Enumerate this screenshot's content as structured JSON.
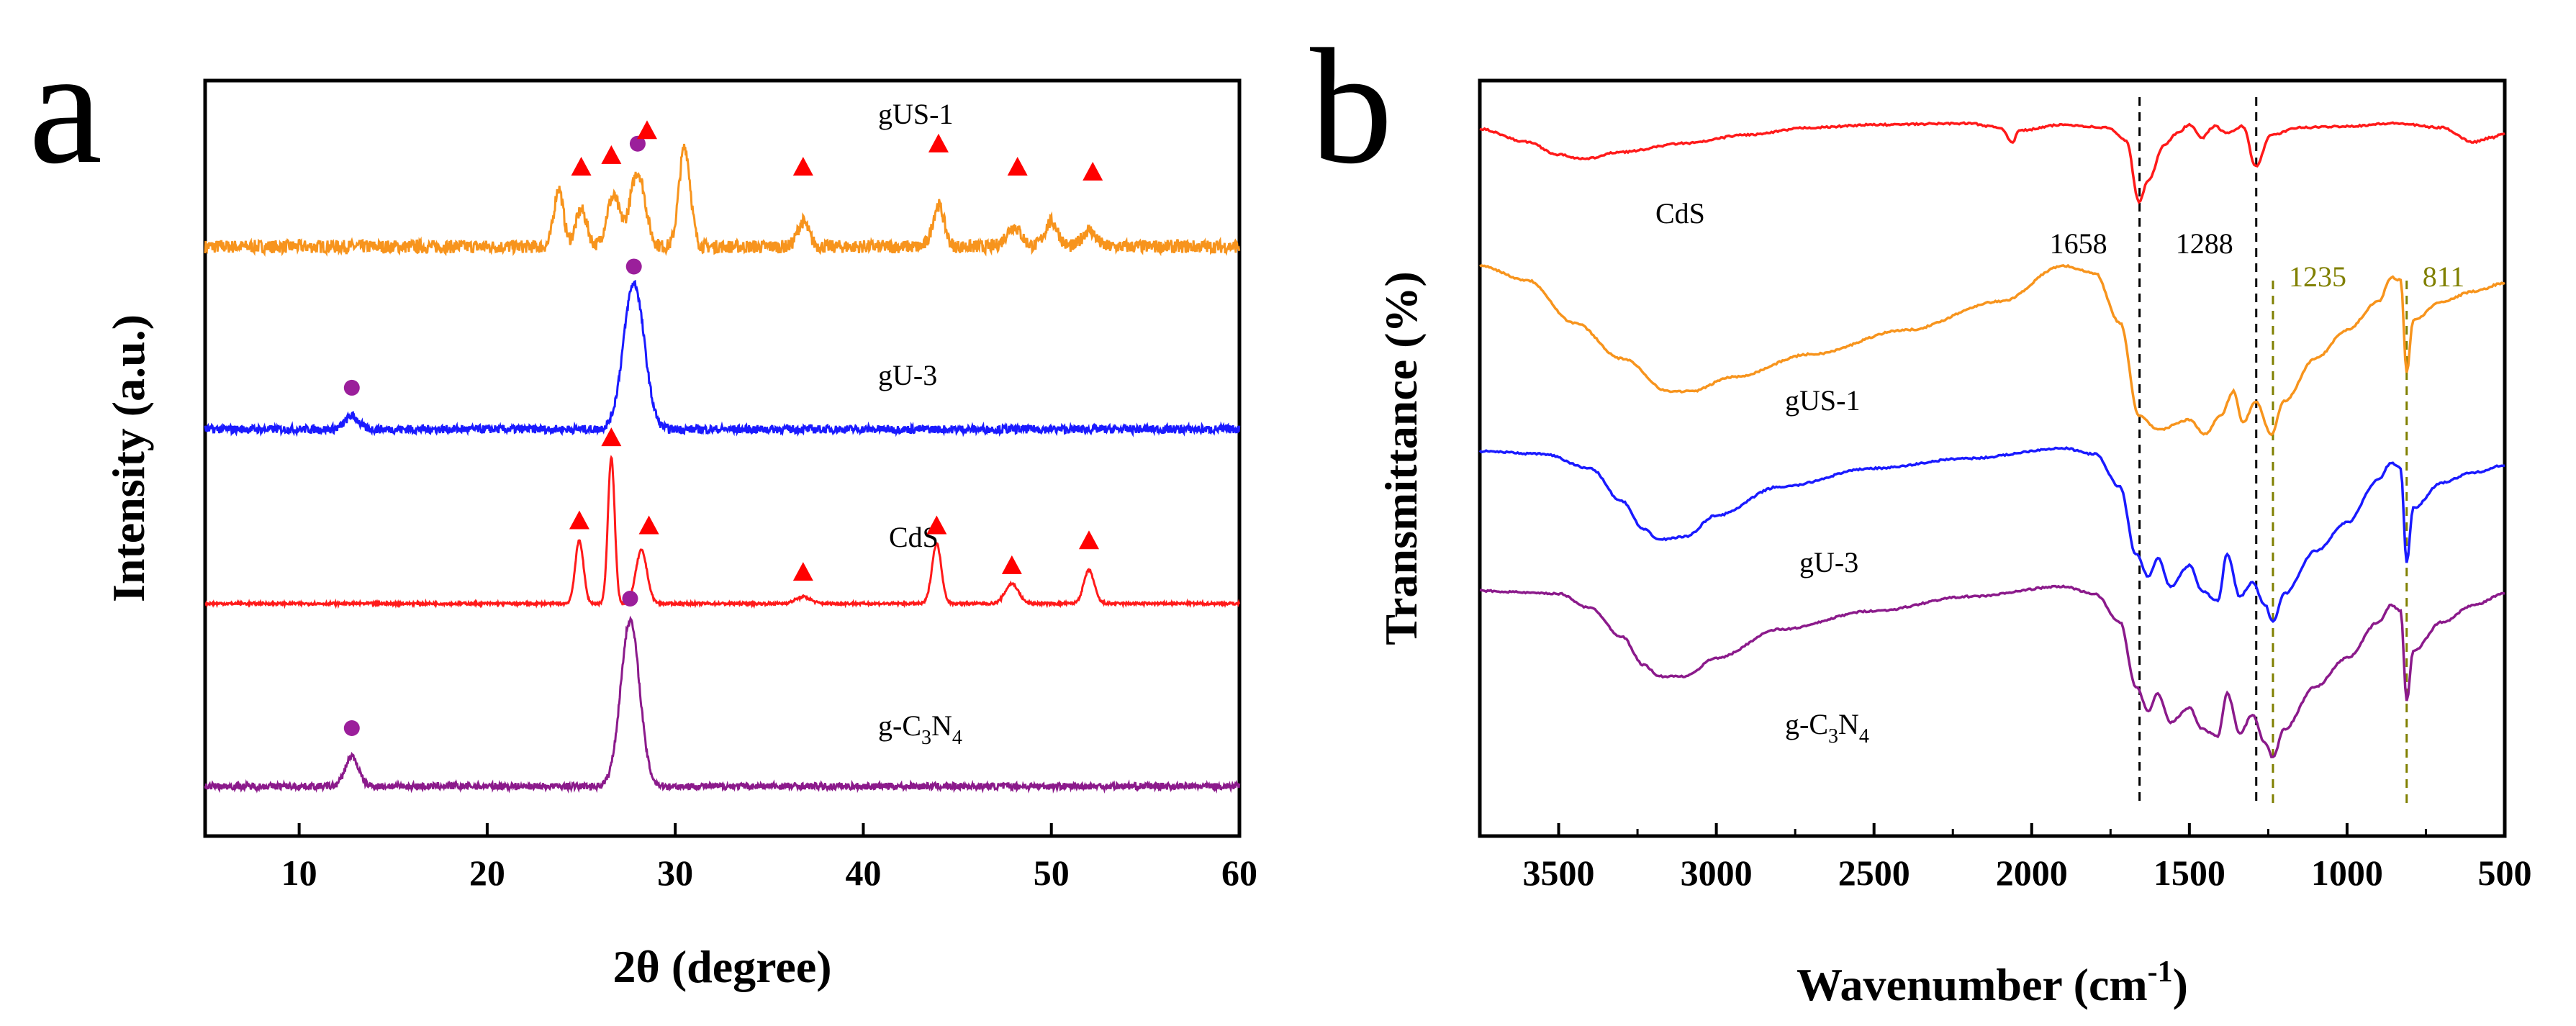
{
  "chart_data": [
    {
      "panel": "a",
      "type": "line",
      "title": "",
      "xlabel": "2θ (degree)",
      "ylabel": "Intensity (a.u.)",
      "xlim": [
        5,
        60
      ],
      "xticks": [
        10,
        20,
        30,
        40,
        50,
        60
      ],
      "grid": false,
      "series": [
        {
          "name": "gUS-1",
          "display": "gUS-1",
          "color": "#f7941d",
          "baseline": 3.3,
          "noise": 0.08,
          "peaks": [
            {
              "x": 23.8,
              "h": 0.35,
              "w": 0.25
            },
            {
              "x": 25.0,
              "h": 0.22,
              "w": 0.3
            },
            {
              "x": 26.7,
              "h": 0.3,
              "w": 0.35
            },
            {
              "x": 28.0,
              "h": 0.45,
              "w": 0.4
            },
            {
              "x": 30.5,
              "h": 0.6,
              "w": 0.3
            },
            {
              "x": 36.8,
              "h": 0.15,
              "w": 0.3
            },
            {
              "x": 44.0,
              "h": 0.25,
              "w": 0.3
            },
            {
              "x": 48.0,
              "h": 0.12,
              "w": 0.4
            },
            {
              "x": 50.0,
              "h": 0.15,
              "w": 0.35
            },
            {
              "x": 52.0,
              "h": 0.1,
              "w": 0.35
            }
          ]
        },
        {
          "name": "gU-3",
          "display": "gU-3",
          "color": "#1a1aff",
          "baseline": 2.2,
          "noise": 0.05,
          "peaks": [
            {
              "x": 12.8,
              "h": 0.08,
              "w": 0.35
            },
            {
              "x": 27.8,
              "h": 0.88,
              "w": 0.55
            }
          ]
        },
        {
          "name": "CdS",
          "display": "CdS",
          "color": "#ff1a1a",
          "baseline": 1.15,
          "noise": 0.015,
          "peaks": [
            {
              "x": 24.9,
              "h": 0.38,
              "w": 0.22
            },
            {
              "x": 26.6,
              "h": 0.88,
              "w": 0.18
            },
            {
              "x": 28.2,
              "h": 0.32,
              "w": 0.3
            },
            {
              "x": 36.8,
              "h": 0.04,
              "w": 0.4
            },
            {
              "x": 43.9,
              "h": 0.36,
              "w": 0.25
            },
            {
              "x": 47.9,
              "h": 0.12,
              "w": 0.35
            },
            {
              "x": 52.0,
              "h": 0.2,
              "w": 0.28
            }
          ]
        },
        {
          "name": "g-C3N4",
          "display": "g-C",
          "sub1": "3",
          "mid": "N",
          "sub2": "4",
          "color": "#8b1a8b",
          "baseline": 0.05,
          "noise": 0.04,
          "peaks": [
            {
              "x": 12.8,
              "h": 0.18,
              "w": 0.35
            },
            {
              "x": 27.6,
              "h": 1.0,
              "w": 0.5
            }
          ]
        }
      ],
      "markers": [
        {
          "series": "gUS-1",
          "shape": "triangle",
          "x": 25.0,
          "y": 3.78
        },
        {
          "series": "gUS-1",
          "shape": "triangle",
          "x": 26.6,
          "y": 3.85
        },
        {
          "series": "gUS-1",
          "shape": "circle",
          "x": 28.0,
          "y": 3.92
        },
        {
          "series": "gUS-1",
          "shape": "triangle",
          "x": 28.5,
          "y": 4.0
        },
        {
          "series": "gUS-1",
          "shape": "triangle",
          "x": 36.8,
          "y": 3.78
        },
        {
          "series": "gUS-1",
          "shape": "triangle",
          "x": 44.0,
          "y": 3.92
        },
        {
          "series": "gUS-1",
          "shape": "triangle",
          "x": 48.2,
          "y": 3.78
        },
        {
          "series": "gUS-1",
          "shape": "triangle",
          "x": 52.2,
          "y": 3.75
        },
        {
          "series": "gU-3",
          "shape": "circle",
          "x": 27.8,
          "y": 3.18
        },
        {
          "series": "gU-3",
          "shape": "circle",
          "x": 12.8,
          "y": 2.45
        },
        {
          "series": "CdS",
          "shape": "triangle",
          "x": 26.6,
          "y": 2.15
        },
        {
          "series": "CdS",
          "shape": "triangle",
          "x": 24.9,
          "y": 1.65
        },
        {
          "series": "CdS",
          "shape": "triangle",
          "x": 28.6,
          "y": 1.62
        },
        {
          "series": "CdS",
          "shape": "triangle",
          "x": 36.8,
          "y": 1.34
        },
        {
          "series": "CdS",
          "shape": "triangle",
          "x": 43.9,
          "y": 1.62
        },
        {
          "series": "CdS",
          "shape": "triangle",
          "x": 47.9,
          "y": 1.38
        },
        {
          "series": "CdS",
          "shape": "triangle",
          "x": 52.0,
          "y": 1.53
        },
        {
          "series": "g-C3N4",
          "shape": "circle",
          "x": 27.6,
          "y": 1.18
        },
        {
          "series": "g-C3N4",
          "shape": "circle",
          "x": 12.8,
          "y": 0.4
        }
      ]
    },
    {
      "panel": "b",
      "type": "line",
      "title": "",
      "xlabel": "Wavenumber (cm",
      "xlabel_sup": "-1",
      "xlabel_end": ")",
      "ylabel": "Transmittance (%)",
      "xlim": [
        3750,
        500
      ],
      "xticks": [
        3500,
        3000,
        2500,
        2000,
        1500,
        1000,
        500
      ],
      "grid": false,
      "series": [
        {
          "name": "CdS",
          "display": "CdS",
          "color": "#ff1a1a",
          "points": [
            [
              3750,
              3.96
            ],
            [
              3600,
              3.87
            ],
            [
              3500,
              3.78
            ],
            [
              3420,
              3.75
            ],
            [
              3300,
              3.8
            ],
            [
              3100,
              3.86
            ],
            [
              2900,
              3.92
            ],
            [
              2700,
              3.97
            ],
            [
              2500,
              3.99
            ],
            [
              2200,
              4.0
            ],
            [
              2100,
              3.97
            ],
            [
              2060,
              3.87
            ],
            [
              2040,
              3.95
            ],
            [
              1900,
              3.99
            ],
            [
              1760,
              3.97
            ],
            [
              1700,
              3.88
            ],
            [
              1660,
              3.45
            ],
            [
              1630,
              3.6
            ],
            [
              1580,
              3.85
            ],
            [
              1540,
              3.93
            ],
            [
              1500,
              3.99
            ],
            [
              1460,
              3.9
            ],
            [
              1420,
              3.98
            ],
            [
              1380,
              3.93
            ],
            [
              1330,
              3.98
            ],
            [
              1290,
              3.7
            ],
            [
              1240,
              3.92
            ],
            [
              1150,
              3.97
            ],
            [
              1000,
              3.98
            ],
            [
              850,
              4.0
            ],
            [
              700,
              3.97
            ],
            [
              600,
              3.87
            ],
            [
              540,
              3.9
            ],
            [
              500,
              3.93
            ]
          ]
        },
        {
          "name": "gUS-1",
          "display": "gUS-1",
          "color": "#f7941d",
          "points": [
            [
              3750,
              3.0
            ],
            [
              3600,
              2.9
            ],
            [
              3450,
              2.6
            ],
            [
              3300,
              2.35
            ],
            [
              3150,
              2.12
            ],
            [
              3080,
              2.12
            ],
            [
              2950,
              2.22
            ],
            [
              2700,
              2.38
            ],
            [
              2400,
              2.55
            ],
            [
              2100,
              2.75
            ],
            [
              1900,
              3.0
            ],
            [
              1800,
              2.95
            ],
            [
              1720,
              2.6
            ],
            [
              1660,
              1.95
            ],
            [
              1600,
              1.85
            ],
            [
              1500,
              1.92
            ],
            [
              1450,
              1.82
            ],
            [
              1400,
              1.95
            ],
            [
              1360,
              2.12
            ],
            [
              1330,
              1.9
            ],
            [
              1290,
              2.05
            ],
            [
              1240,
              1.82
            ],
            [
              1200,
              2.05
            ],
            [
              1100,
              2.35
            ],
            [
              1000,
              2.55
            ],
            [
              900,
              2.75
            ],
            [
              860,
              2.92
            ],
            [
              830,
              2.9
            ],
            [
              811,
              2.25
            ],
            [
              790,
              2.62
            ],
            [
              700,
              2.75
            ],
            [
              600,
              2.82
            ],
            [
              500,
              2.88
            ]
          ]
        },
        {
          "name": "gU-3",
          "display": "gU-3",
          "color": "#1a1aff",
          "points": [
            [
              3750,
              1.7
            ],
            [
              3550,
              1.68
            ],
            [
              3400,
              1.58
            ],
            [
              3300,
              1.35
            ],
            [
              3230,
              1.15
            ],
            [
              3180,
              1.08
            ],
            [
              3100,
              1.1
            ],
            [
              3000,
              1.25
            ],
            [
              2800,
              1.45
            ],
            [
              2500,
              1.58
            ],
            [
              2200,
              1.65
            ],
            [
              1900,
              1.72
            ],
            [
              1800,
              1.68
            ],
            [
              1720,
              1.45
            ],
            [
              1670,
              0.98
            ],
            [
              1630,
              0.82
            ],
            [
              1600,
              0.95
            ],
            [
              1560,
              0.75
            ],
            [
              1500,
              0.9
            ],
            [
              1460,
              0.72
            ],
            [
              1410,
              0.65
            ],
            [
              1380,
              0.98
            ],
            [
              1340,
              0.68
            ],
            [
              1300,
              0.78
            ],
            [
              1260,
              0.62
            ],
            [
              1235,
              0.5
            ],
            [
              1200,
              0.7
            ],
            [
              1100,
              1.0
            ],
            [
              1000,
              1.2
            ],
            [
              900,
              1.5
            ],
            [
              860,
              1.62
            ],
            [
              830,
              1.58
            ],
            [
              811,
              0.92
            ],
            [
              790,
              1.3
            ],
            [
              700,
              1.48
            ],
            [
              600,
              1.55
            ],
            [
              500,
              1.6
            ]
          ]
        },
        {
          "name": "g-C3N4",
          "display": "g-C",
          "sub1": "3",
          "mid": "N",
          "sub2": "4",
          "color": "#8b1a8b",
          "points": [
            [
              3750,
              0.72
            ],
            [
              3500,
              0.7
            ],
            [
              3400,
              0.6
            ],
            [
              3300,
              0.4
            ],
            [
              3230,
              0.2
            ],
            [
              3180,
              0.12
            ],
            [
              3100,
              0.12
            ],
            [
              3000,
              0.25
            ],
            [
              2800,
              0.45
            ],
            [
              2500,
              0.58
            ],
            [
              2200,
              0.68
            ],
            [
              1900,
              0.75
            ],
            [
              1800,
              0.7
            ],
            [
              1720,
              0.5
            ],
            [
              1670,
              0.05
            ],
            [
              1630,
              -0.12
            ],
            [
              1600,
              0.0
            ],
            [
              1560,
              -0.2
            ],
            [
              1500,
              -0.1
            ],
            [
              1460,
              -0.25
            ],
            [
              1410,
              -0.3
            ],
            [
              1380,
              0.0
            ],
            [
              1340,
              -0.28
            ],
            [
              1300,
              -0.15
            ],
            [
              1260,
              -0.35
            ],
            [
              1235,
              -0.45
            ],
            [
              1200,
              -0.25
            ],
            [
              1100,
              0.05
            ],
            [
              1000,
              0.25
            ],
            [
              900,
              0.5
            ],
            [
              860,
              0.62
            ],
            [
              830,
              0.58
            ],
            [
              811,
              -0.05
            ],
            [
              790,
              0.3
            ],
            [
              700,
              0.5
            ],
            [
              600,
              0.62
            ],
            [
              500,
              0.7
            ]
          ]
        }
      ],
      "annotations": [
        {
          "label": "1658",
          "x": 1658,
          "color": "#000000"
        },
        {
          "label": "1288",
          "x": 1288,
          "color": "#000000"
        },
        {
          "label": "1235",
          "x": 1235,
          "color": "#808000"
        },
        {
          "label": "811",
          "x": 811,
          "color": "#808000"
        }
      ]
    }
  ],
  "panels": {
    "a": "a",
    "b": "b"
  }
}
